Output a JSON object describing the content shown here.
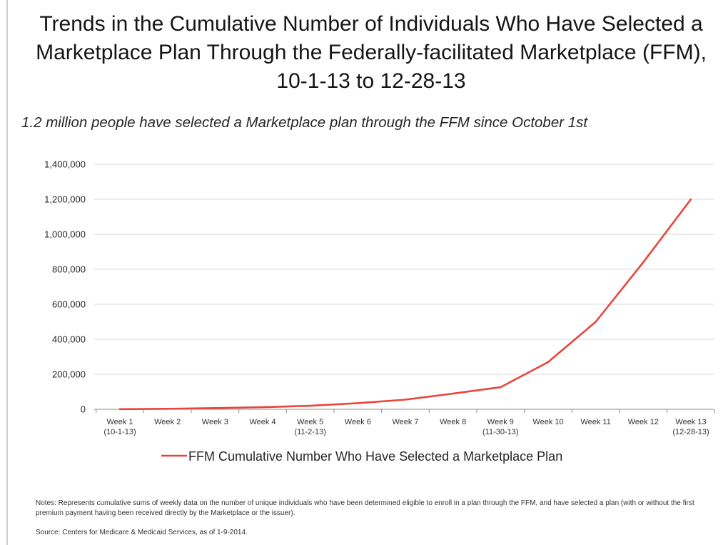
{
  "title": "Trends in the Cumulative Number of Individuals Who Have Selected a Marketplace Plan Through the Federally-facilitated Marketplace (FFM), 10-1-13 to 12-28-13",
  "subtitle": "1.2 million people have selected a Marketplace plan through the FFM since October 1st",
  "notes": "Notes:  Represents cumulative sums of weekly data on the number of unique individuals who have been determined eligible to enroll in a plan through the FFM, and have selected a plan (with or without the first premium payment having been received directly by the Marketplace or the issuer).",
  "source": "Source:  Centers for Medicare & Medicaid Services, as of 1-9-2014.",
  "colors": {
    "line": "#e8453c",
    "grid": "#d9d9d9",
    "axis": "#8c8c8c"
  },
  "chart_data": {
    "type": "line",
    "categories": [
      [
        "Week 1",
        "(10-1-13)"
      ],
      [
        "Week 2"
      ],
      [
        "Week 3"
      ],
      [
        "Week 4"
      ],
      [
        "Week 5",
        "(11-2-13)"
      ],
      [
        "Week 6"
      ],
      [
        "Week 7"
      ],
      [
        "Week 8"
      ],
      [
        "Week 9",
        "(11-30-13)"
      ],
      [
        "Week 10"
      ],
      [
        "Week 11"
      ],
      [
        "Week 12"
      ],
      [
        "Week 13",
        "(12-28-13)"
      ]
    ],
    "series": [
      {
        "name": "FFM Cumulative Number Who Have Selected a Marketplace Plan",
        "values": [
          1000,
          3000,
          7000,
          12000,
          20000,
          35000,
          55000,
          90000,
          126000,
          270000,
          500000,
          840000,
          1200000
        ]
      }
    ],
    "ylim": [
      0,
      1400000
    ],
    "yticks": [
      0,
      200000,
      400000,
      600000,
      800000,
      1000000,
      1200000,
      1400000
    ],
    "ytick_labels": [
      "0",
      "200,000",
      "400,000",
      "600,000",
      "800,000",
      "1,000,000",
      "1,200,000",
      "1,400,000"
    ],
    "grid": true,
    "legend": "bottom-center"
  }
}
